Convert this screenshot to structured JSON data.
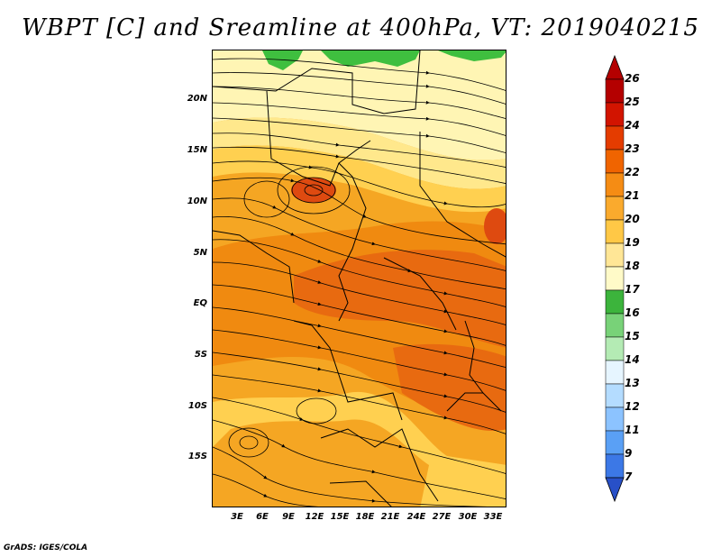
{
  "title": "WBPT [C] and Sreamline at 400hPa, VT: 2019040215",
  "footer": "GrADS: IGES/COLA",
  "map": {
    "lat_labels": [
      "20N",
      "15N",
      "10N",
      "5N",
      "EQ",
      "5S",
      "10S",
      "15S"
    ],
    "lon_labels": [
      "3E",
      "6E",
      "9E",
      "12E",
      "15E",
      "18E",
      "21E",
      "24E",
      "27E",
      "30E",
      "33E"
    ],
    "field_colors": {
      "c17": "#3fbf3f",
      "c18": "#fff5b4",
      "c19": "#ffe88c",
      "c20": "#ffd050",
      "c21": "#f5a623",
      "c22": "#f08a10",
      "c23": "#e86a10",
      "c24": "#de4a10"
    }
  },
  "colorbar": {
    "labels": [
      "26",
      "25",
      "24",
      "23",
      "22",
      "21",
      "20",
      "19",
      "18",
      "17",
      "16",
      "15",
      "14",
      "13",
      "12",
      "11",
      "9",
      "7"
    ],
    "colors": [
      "#b40000",
      "#d21400",
      "#e43c00",
      "#f06400",
      "#f58c14",
      "#faaa2d",
      "#ffc846",
      "#ffe696",
      "#fffac8",
      "#3cb43c",
      "#78d278",
      "#b4ebb4",
      "#e6f5ff",
      "#b4dcff",
      "#8cc3ff",
      "#5aa0f5",
      "#3c78e6",
      "#2850c8"
    ]
  }
}
